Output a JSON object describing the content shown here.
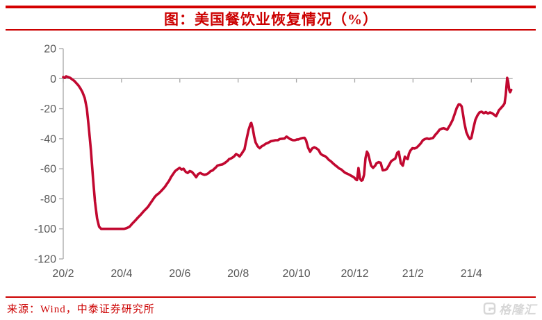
{
  "title": "图：美国餐饮业恢复情况（%）",
  "source": "来源：Wind，中泰证券研究所",
  "watermark": {
    "text": "格隆汇",
    "logo": "gelonghui-g-icon"
  },
  "colors": {
    "accent_red": "#D40000",
    "title_red": "#CC0000",
    "line_crimson": "#C10830",
    "axis_gray": "#A6A6A6",
    "label_gray": "#595959",
    "watermark_gray": "#D7D7D7"
  },
  "chart_data": {
    "type": "line",
    "title": "美国餐饮业恢复情况（%）",
    "xlabel": "",
    "ylabel": "",
    "x_unit": "months since 2020-02",
    "xlim": [
      0,
      15.4
    ],
    "ylim": [
      -120,
      20
    ],
    "grid": false,
    "legend_position": "none",
    "x_tick_pos": [
      0,
      2,
      4,
      6,
      8,
      10,
      12,
      14
    ],
    "x_tick_labels": [
      "20/2",
      "20/4",
      "20/6",
      "20/8",
      "20/10",
      "20/12",
      "21/2",
      "21/4"
    ],
    "y_ticks": [
      20,
      0,
      -20,
      -40,
      -60,
      -80,
      -100,
      -120
    ],
    "points": [
      [
        0,
        1
      ],
      [
        0.05,
        0.5
      ],
      [
        0.1,
        1.5
      ],
      [
        0.17,
        1
      ],
      [
        0.24,
        0.5
      ],
      [
        0.31,
        -0.5
      ],
      [
        0.38,
        -1.5
      ],
      [
        0.45,
        -3
      ],
      [
        0.52,
        -4.5
      ],
      [
        0.59,
        -6.5
      ],
      [
        0.66,
        -9
      ],
      [
        0.74,
        -13
      ],
      [
        0.81,
        -20
      ],
      [
        0.88,
        -33
      ],
      [
        0.95,
        -48
      ],
      [
        1.02,
        -66
      ],
      [
        1.09,
        -82
      ],
      [
        1.16,
        -93
      ],
      [
        1.23,
        -98.5
      ],
      [
        1.3,
        -100
      ],
      [
        1.42,
        -100
      ],
      [
        1.54,
        -100
      ],
      [
        1.66,
        -100
      ],
      [
        1.78,
        -100
      ],
      [
        1.9,
        -100
      ],
      [
        2.02,
        -100
      ],
      [
        2.09,
        -100
      ],
      [
        2.18,
        -99.5
      ],
      [
        2.28,
        -98.5
      ],
      [
        2.37,
        -96.5
      ],
      [
        2.47,
        -94.5
      ],
      [
        2.56,
        -92.5
      ],
      [
        2.66,
        -90.5
      ],
      [
        2.75,
        -88.5
      ],
      [
        2.85,
        -86.5
      ],
      [
        2.92,
        -85
      ],
      [
        2.99,
        -83
      ],
      [
        3.06,
        -81
      ],
      [
        3.13,
        -79
      ],
      [
        3.2,
        -77.5
      ],
      [
        3.27,
        -76.5
      ],
      [
        3.35,
        -75
      ],
      [
        3.42,
        -73.5
      ],
      [
        3.49,
        -72
      ],
      [
        3.56,
        -70
      ],
      [
        3.63,
        -68
      ],
      [
        3.7,
        -65.5
      ],
      [
        3.77,
        -63.5
      ],
      [
        3.84,
        -61.5
      ],
      [
        3.91,
        -60.5
      ],
      [
        3.99,
        -59.4
      ],
      [
        4.06,
        -60.5
      ],
      [
        4.13,
        -60
      ],
      [
        4.2,
        -62
      ],
      [
        4.27,
        -62.8
      ],
      [
        4.34,
        -61.5
      ],
      [
        4.41,
        -62
      ],
      [
        4.48,
        -63.5
      ],
      [
        4.56,
        -65.6
      ],
      [
        4.63,
        -63.5
      ],
      [
        4.7,
        -62.8
      ],
      [
        4.77,
        -63.5
      ],
      [
        4.84,
        -64
      ],
      [
        4.91,
        -63.7
      ],
      [
        4.98,
        -63
      ],
      [
        5.05,
        -61.7
      ],
      [
        5.13,
        -61
      ],
      [
        5.17,
        -60.2
      ],
      [
        5.24,
        -59
      ],
      [
        5.29,
        -57.9
      ],
      [
        5.36,
        -57.5
      ],
      [
        5.46,
        -57.1
      ],
      [
        5.53,
        -56.3
      ],
      [
        5.58,
        -55.6
      ],
      [
        5.65,
        -54.5
      ],
      [
        5.69,
        -53.5
      ],
      [
        5.74,
        -53.3
      ],
      [
        5.81,
        -52.5
      ],
      [
        5.86,
        -51.8
      ],
      [
        5.93,
        -50.2
      ],
      [
        6,
        -51
      ],
      [
        6.05,
        -51.8
      ],
      [
        6.12,
        -50
      ],
      [
        6.17,
        -48.5
      ],
      [
        6.22,
        -47
      ],
      [
        6.26,
        -43
      ],
      [
        6.36,
        -34
      ],
      [
        6.43,
        -30
      ],
      [
        6.45,
        -29.5
      ],
      [
        6.5,
        -33
      ],
      [
        6.55,
        -38.6
      ],
      [
        6.6,
        -42.5
      ],
      [
        6.67,
        -45
      ],
      [
        6.74,
        -46.3
      ],
      [
        6.81,
        -45
      ],
      [
        6.88,
        -44.3
      ],
      [
        6.95,
        -43.3
      ],
      [
        7.02,
        -42.8
      ],
      [
        7.12,
        -41.7
      ],
      [
        7.21,
        -41.3
      ],
      [
        7.28,
        -41
      ],
      [
        7.36,
        -41
      ],
      [
        7.43,
        -40.2
      ],
      [
        7.5,
        -40
      ],
      [
        7.59,
        -39.9
      ],
      [
        7.66,
        -38.6
      ],
      [
        7.73,
        -39.5
      ],
      [
        7.78,
        -40.2
      ],
      [
        7.88,
        -41
      ],
      [
        7.95,
        -41
      ],
      [
        8.02,
        -40.5
      ],
      [
        8.07,
        -40.5
      ],
      [
        8.14,
        -39.9
      ],
      [
        8.21,
        -39.5
      ],
      [
        8.28,
        -39.4
      ],
      [
        8.33,
        -41
      ],
      [
        8.4,
        -46
      ],
      [
        8.47,
        -48.6
      ],
      [
        8.54,
        -46.5
      ],
      [
        8.61,
        -45.7
      ],
      [
        8.68,
        -46.3
      ],
      [
        8.76,
        -47.5
      ],
      [
        8.83,
        -50
      ],
      [
        8.9,
        -51
      ],
      [
        8.97,
        -51.5
      ],
      [
        9.04,
        -52.5
      ],
      [
        9.11,
        -54
      ],
      [
        9.18,
        -55
      ],
      [
        9.25,
        -56.3
      ],
      [
        9.32,
        -57.5
      ],
      [
        9.4,
        -58.7
      ],
      [
        9.47,
        -59.8
      ],
      [
        9.54,
        -60.5
      ],
      [
        9.61,
        -61.7
      ],
      [
        9.68,
        -62.8
      ],
      [
        9.75,
        -63.3
      ],
      [
        9.82,
        -64
      ],
      [
        9.89,
        -64.8
      ],
      [
        9.97,
        -65.6
      ],
      [
        10.04,
        -67.1
      ],
      [
        10.08,
        -67.5
      ],
      [
        10.13,
        -59.5
      ],
      [
        10.18,
        -66.5
      ],
      [
        10.23,
        -67.9
      ],
      [
        10.27,
        -67.5
      ],
      [
        10.32,
        -64
      ],
      [
        10.37,
        -53
      ],
      [
        10.42,
        -48.6
      ],
      [
        10.46,
        -50
      ],
      [
        10.51,
        -54
      ],
      [
        10.56,
        -57.9
      ],
      [
        10.63,
        -59.4
      ],
      [
        10.7,
        -58
      ],
      [
        10.75,
        -56.3
      ],
      [
        10.82,
        -55.6
      ],
      [
        10.89,
        -56
      ],
      [
        10.96,
        -61
      ],
      [
        11.03,
        -60.8
      ],
      [
        11.1,
        -60.2
      ],
      [
        11.18,
        -57.5
      ],
      [
        11.25,
        -55
      ],
      [
        11.32,
        -54
      ],
      [
        11.39,
        -53.3
      ],
      [
        11.46,
        -49.4
      ],
      [
        11.51,
        -48.6
      ],
      [
        11.58,
        -56.3
      ],
      [
        11.65,
        -57.9
      ],
      [
        11.72,
        -52
      ],
      [
        11.77,
        -53
      ],
      [
        11.82,
        -53.5
      ],
      [
        11.86,
        -50
      ],
      [
        11.91,
        -47.9
      ],
      [
        11.98,
        -46.3
      ],
      [
        12.05,
        -46.5
      ],
      [
        12.12,
        -46
      ],
      [
        12.2,
        -44.5
      ],
      [
        12.27,
        -43
      ],
      [
        12.34,
        -41
      ],
      [
        12.41,
        -40.2
      ],
      [
        12.48,
        -39.8
      ],
      [
        12.55,
        -40.2
      ],
      [
        12.62,
        -39.8
      ],
      [
        12.69,
        -39.4
      ],
      [
        12.76,
        -37.5
      ],
      [
        12.84,
        -35.8
      ],
      [
        12.91,
        -34
      ],
      [
        12.98,
        -33.3
      ],
      [
        13.05,
        -33
      ],
      [
        13.12,
        -33.5
      ],
      [
        13.17,
        -34
      ],
      [
        13.22,
        -32.5
      ],
      [
        13.29,
        -30.2
      ],
      [
        13.36,
        -27.5
      ],
      [
        13.43,
        -23.5
      ],
      [
        13.5,
        -19.5
      ],
      [
        13.57,
        -17.1
      ],
      [
        13.62,
        -17.3
      ],
      [
        13.67,
        -18.5
      ],
      [
        13.71,
        -23
      ],
      [
        13.76,
        -29.4
      ],
      [
        13.83,
        -35.6
      ],
      [
        13.9,
        -38.8
      ],
      [
        13.95,
        -40.2
      ],
      [
        14,
        -39.5
      ],
      [
        14.07,
        -33.2
      ],
      [
        14.14,
        -27.5
      ],
      [
        14.21,
        -24.5
      ],
      [
        14.28,
        -22.5
      ],
      [
        14.35,
        -22
      ],
      [
        14.43,
        -23
      ],
      [
        14.5,
        -22.3
      ],
      [
        14.57,
        -23.2
      ],
      [
        14.64,
        -22.5
      ],
      [
        14.71,
        -23
      ],
      [
        14.78,
        -24
      ],
      [
        14.85,
        -25
      ],
      [
        14.9,
        -23
      ],
      [
        14.95,
        -21
      ],
      [
        15.02,
        -19.5
      ],
      [
        15.09,
        -18
      ],
      [
        15.14,
        -16.5
      ],
      [
        15.18,
        -11
      ],
      [
        15.23,
        0.5
      ],
      [
        15.26,
        -1.5
      ],
      [
        15.3,
        -7.5
      ],
      [
        15.33,
        -9
      ],
      [
        15.37,
        -7.5
      ]
    ]
  }
}
